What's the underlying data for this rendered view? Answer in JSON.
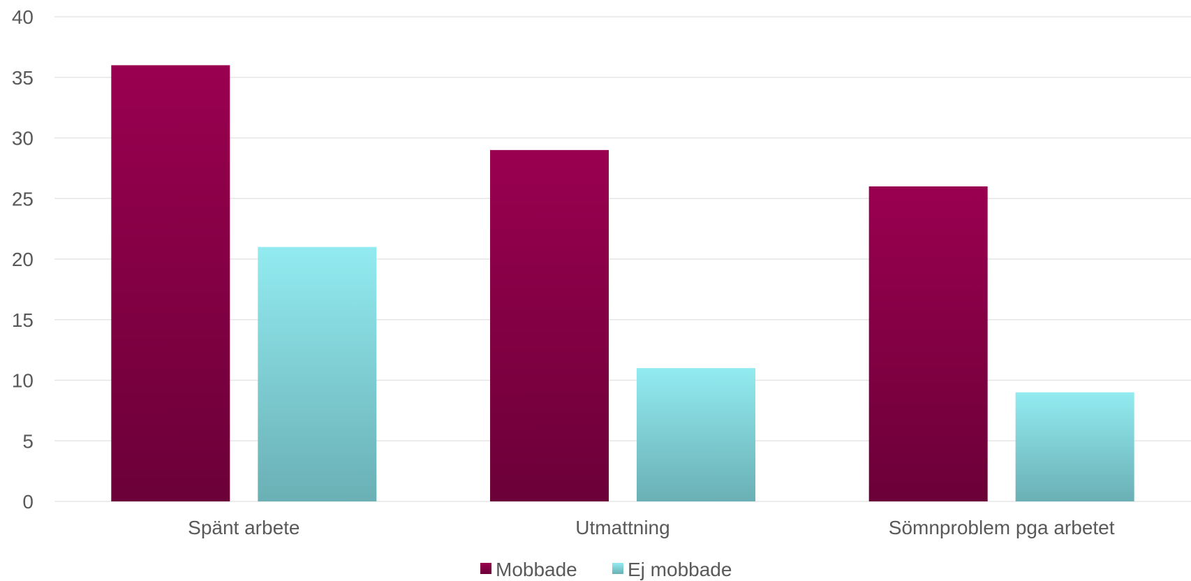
{
  "chart_data": {
    "type": "bar",
    "categories": [
      "Spänt arbete",
      "Utmattning",
      "Sömnproblem pga arbetet"
    ],
    "series": [
      {
        "name": "Mobbade",
        "values": [
          36,
          29,
          26
        ],
        "color": "#9a0050",
        "color_dark": "#6b0038"
      },
      {
        "name": "Ej mobbade",
        "values": [
          21,
          11,
          9
        ],
        "color": "#92ebf0",
        "color_dark": "#6ab0b5"
      }
    ],
    "y_ticks": [
      0,
      5,
      10,
      15,
      20,
      25,
      30,
      35,
      40
    ],
    "ylim": [
      0,
      40
    ],
    "grid": true,
    "legend_position": "bottom",
    "gridline_color": "#e6e6e6"
  }
}
